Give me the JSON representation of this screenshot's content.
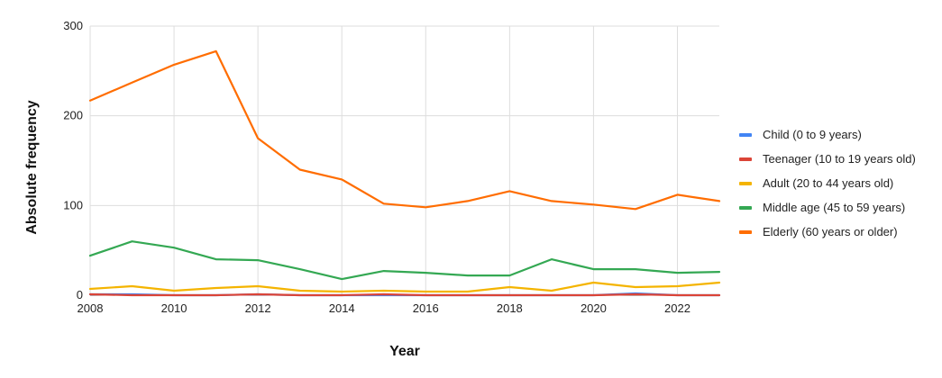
{
  "chart_data": {
    "type": "line",
    "title": "",
    "xlabel": "Year",
    "ylabel": "Absolute frequency",
    "x": [
      2008,
      2009,
      2010,
      2011,
      2012,
      2013,
      2014,
      2015,
      2016,
      2017,
      2018,
      2019,
      2020,
      2021,
      2022,
      2023
    ],
    "xlim": [
      2008,
      2023
    ],
    "ylim": [
      0,
      300
    ],
    "x_ticks": [
      "2008",
      "2010",
      "2012",
      "2014",
      "2016",
      "2018",
      "2020",
      "2022"
    ],
    "y_ticks": [
      "0",
      "100",
      "200",
      "300"
    ],
    "grid": true,
    "legend_position": "right",
    "series": [
      {
        "name": "Child (0 to 9 years)",
        "color": "#4285f4",
        "values": [
          1,
          1,
          0,
          0,
          1,
          0,
          0,
          0,
          0,
          0,
          0,
          0,
          0,
          2,
          0,
          0
        ]
      },
      {
        "name": "Teenager (10 to 19 years old)",
        "color": "#db4437",
        "values": [
          1,
          0,
          0,
          0,
          1,
          0,
          0,
          1,
          0,
          0,
          0,
          0,
          0,
          1,
          0,
          0
        ]
      },
      {
        "name": "Adult (20 to 44 years old)",
        "color": "#f4b400",
        "values": [
          7,
          10,
          5,
          8,
          10,
          5,
          4,
          5,
          4,
          4,
          9,
          5,
          14,
          9,
          10,
          14
        ]
      },
      {
        "name": "Middle age (45 to 59 years)",
        "color": "#34a853",
        "values": [
          44,
          60,
          53,
          40,
          39,
          29,
          18,
          27,
          25,
          22,
          22,
          40,
          29,
          29,
          25,
          26
        ]
      },
      {
        "name": "Elderly (60 years or older)",
        "color": "#ff6d01",
        "values": [
          217,
          237,
          257,
          272,
          175,
          140,
          129,
          102,
          98,
          105,
          116,
          105,
          101,
          96,
          112,
          105
        ]
      }
    ]
  }
}
